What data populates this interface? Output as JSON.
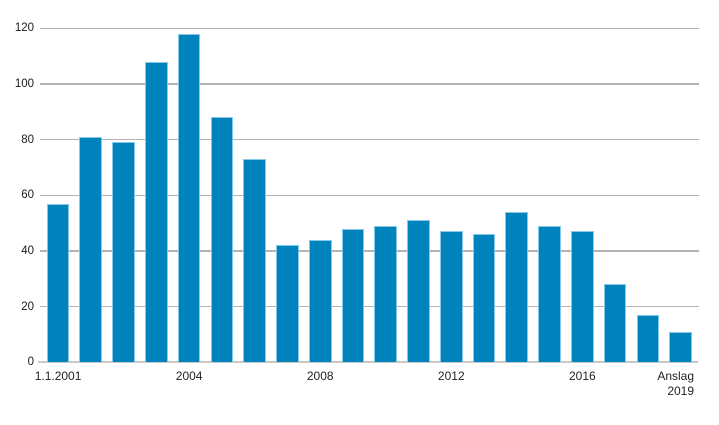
{
  "figure": {
    "background": "#ffffff"
  },
  "chart_data": {
    "type": "bar",
    "title": "",
    "subtitle": "",
    "xlabel": "",
    "ylabel": "",
    "ylim": [
      0,
      120
    ],
    "y_ticks": [
      0,
      20,
      40,
      60,
      80,
      100,
      120
    ],
    "grid": "horizontal gridlines on",
    "legend": "none",
    "bar_color": "#0082bc",
    "bar_edge_color": "#9ed5ef",
    "gridline_color": "#b3b3b3",
    "axis_line_color": "#c9c9c9",
    "text_color": "#1a1a1a",
    "values": [
      57,
      81,
      79,
      108,
      118,
      88,
      73,
      42,
      44,
      48,
      49,
      51,
      47,
      46,
      54,
      49,
      47,
      28,
      17,
      11
    ],
    "x_tick_labels": [
      {
        "bar_index": 0,
        "label": "1.1.2001"
      },
      {
        "bar_index": 4,
        "label": "2004"
      },
      {
        "bar_index": 8,
        "label": "2008"
      },
      {
        "bar_index": 12,
        "label": "2012"
      },
      {
        "bar_index": 16,
        "label": "2016"
      },
      {
        "bar_index": 19,
        "label": "Anslag\n2019"
      }
    ]
  }
}
